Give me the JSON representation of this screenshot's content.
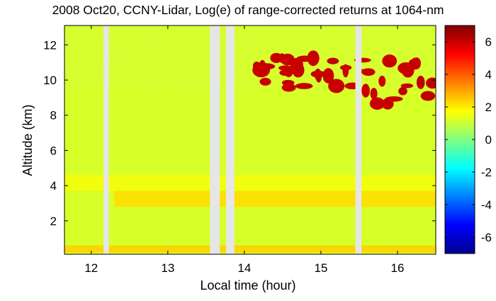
{
  "chart_data": {
    "type": "heatmap",
    "title": "2008 Oct20, CCNY-Lidar, Log(e) of range-corrected returns at 1064-nm",
    "xlabel": "Local time (hour)",
    "ylabel": "Altitude (km)",
    "xlim": [
      11.65,
      16.5
    ],
    "ylim": [
      0.1,
      13.1
    ],
    "xticks": [
      "12",
      "13",
      "14",
      "15",
      "16"
    ],
    "xtick_values": [
      12,
      13,
      14,
      15,
      16
    ],
    "yticks": [
      "2",
      "4",
      "6",
      "8",
      "10",
      "12"
    ],
    "ytick_values": [
      2,
      4,
      6,
      8,
      10,
      12
    ],
    "colorbar": {
      "range": [
        -7,
        7
      ],
      "ticks": [
        "6",
        "4",
        "2",
        "0",
        "-2",
        "-4",
        "-6"
      ],
      "tick_values": [
        6,
        4,
        2,
        0,
        -2,
        -4,
        -6
      ],
      "colormap": "jet"
    },
    "background_value": 1.2,
    "data_gaps_hours": [
      [
        12.16,
        12.23
      ],
      [
        13.55,
        13.68
      ],
      [
        13.76,
        13.87
      ],
      [
        15.45,
        15.53
      ]
    ],
    "features": [
      {
        "name": "surface layer",
        "x": [
          11.65,
          16.5
        ],
        "altitude_km": [
          0.2,
          0.6
        ],
        "value": 2.4
      },
      {
        "name": "boundary layer top",
        "x": [
          12.3,
          16.5
        ],
        "altitude_km": [
          2.8,
          3.7
        ],
        "value": 2.2
      },
      {
        "name": "residual layer",
        "x": [
          11.65,
          16.5
        ],
        "altitude_km": [
          3.7,
          4.6
        ],
        "value": 1.6
      },
      {
        "name": "cirrus cloud",
        "x": [
          14.1,
          15.45
        ],
        "altitude_km": [
          9.5,
          11.3
        ],
        "value": 6.0
      },
      {
        "name": "cirrus cloud",
        "x": [
          15.53,
          16.5
        ],
        "altitude_km": [
          8.3,
          11.2
        ],
        "value": 6.0
      }
    ]
  }
}
